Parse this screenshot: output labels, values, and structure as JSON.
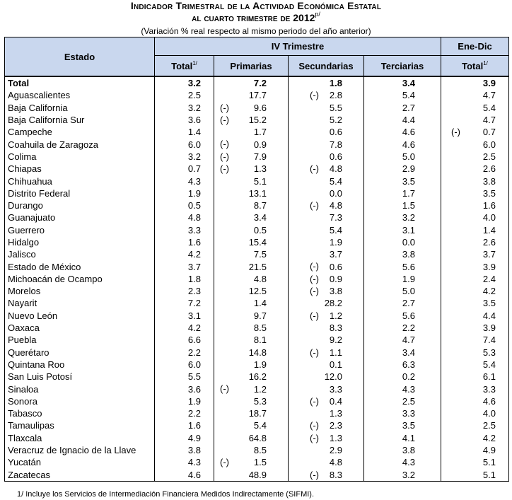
{
  "title": {
    "line1": "Indicador Trimestral de la Actividad Económica Estatal",
    "line2": "al cuarto trimestre de 2012",
    "line2_sup": "p/",
    "subtitle": "(Variación % real respecto al mismo periodo del año anterior)"
  },
  "header": {
    "estado": "Estado",
    "iv_trimestre": "IV Trimestre",
    "ene_dic": "Ene-Dic",
    "total": "Total",
    "total_sup": "1/",
    "primarias": "Primarias",
    "secundarias": "Secundarias",
    "terciarias": "Terciarias"
  },
  "neg_marker": "(-)",
  "rows": [
    {
      "estado": "Total",
      "total": "3.2",
      "primarias": "7.2",
      "secundarias": "1.8",
      "terciarias": "3.4",
      "ene_dic": "3.9"
    },
    {
      "estado": "Aguascalientes",
      "total": "2.5",
      "primarias": "17.7",
      "secundarias": "(-) 2.8",
      "terciarias": "5.4",
      "ene_dic": "4.7"
    },
    {
      "estado": "Baja California",
      "total": "3.2",
      "primarias": "(-) 9.6",
      "secundarias": "5.5",
      "terciarias": "2.7",
      "ene_dic": "5.4"
    },
    {
      "estado": "Baja California Sur",
      "total": "3.6",
      "primarias": "(-) 15.2",
      "secundarias": "5.2",
      "terciarias": "4.4",
      "ene_dic": "4.7"
    },
    {
      "estado": "Campeche",
      "total": "1.4",
      "primarias": "1.7",
      "secundarias": "0.6",
      "terciarias": "4.6",
      "ene_dic": "(-) 0.7"
    },
    {
      "estado": "Coahuila de Zaragoza",
      "total": "6.0",
      "primarias": "(-) 0.9",
      "secundarias": "7.8",
      "terciarias": "4.6",
      "ene_dic": "6.0"
    },
    {
      "estado": "Colima",
      "total": "3.2",
      "primarias": "(-) 7.9",
      "secundarias": "0.6",
      "terciarias": "5.0",
      "ene_dic": "2.5"
    },
    {
      "estado": "Chiapas",
      "total": "0.7",
      "primarias": "(-) 1.3",
      "secundarias": "(-) 4.8",
      "terciarias": "2.9",
      "ene_dic": "2.6"
    },
    {
      "estado": "Chihuahua",
      "total": "4.3",
      "primarias": "5.1",
      "secundarias": "5.4",
      "terciarias": "3.5",
      "ene_dic": "3.8"
    },
    {
      "estado": "Distrito Federal",
      "total": "1.9",
      "primarias": "13.1",
      "secundarias": "0.0",
      "terciarias": "1.7",
      "ene_dic": "3.5"
    },
    {
      "estado": "Durango",
      "total": "0.5",
      "primarias": "8.7",
      "secundarias": "(-) 4.8",
      "terciarias": "1.5",
      "ene_dic": "1.6"
    },
    {
      "estado": "Guanajuato",
      "total": "4.8",
      "primarias": "3.4",
      "secundarias": "7.3",
      "terciarias": "3.2",
      "ene_dic": "4.0"
    },
    {
      "estado": "Guerrero",
      "total": "3.3",
      "primarias": "0.5",
      "secundarias": "5.4",
      "terciarias": "3.1",
      "ene_dic": "1.4"
    },
    {
      "estado": "Hidalgo",
      "total": "1.6",
      "primarias": "15.4",
      "secundarias": "1.9",
      "terciarias": "0.0",
      "ene_dic": "2.6"
    },
    {
      "estado": "Jalisco",
      "total": "4.2",
      "primarias": "7.5",
      "secundarias": "3.7",
      "terciarias": "3.8",
      "ene_dic": "3.7"
    },
    {
      "estado": "Estado de México",
      "total": "3.7",
      "primarias": "21.5",
      "secundarias": "(-) 0.6",
      "terciarias": "5.6",
      "ene_dic": "3.9"
    },
    {
      "estado": "Michoacán de Ocampo",
      "total": "1.8",
      "primarias": "4.8",
      "secundarias": "(-) 0.9",
      "terciarias": "1.9",
      "ene_dic": "2.4"
    },
    {
      "estado": "Morelos",
      "total": "2.3",
      "primarias": "12.5",
      "secundarias": "(-) 3.8",
      "terciarias": "5.0",
      "ene_dic": "4.2"
    },
    {
      "estado": "Nayarit",
      "total": "7.2",
      "primarias": "1.4",
      "secundarias": "28.2",
      "terciarias": "2.7",
      "ene_dic": "3.5"
    },
    {
      "estado": "Nuevo León",
      "total": "3.1",
      "primarias": "9.7",
      "secundarias": "(-) 1.2",
      "terciarias": "5.6",
      "ene_dic": "4.4"
    },
    {
      "estado": "Oaxaca",
      "total": "4.2",
      "primarias": "8.5",
      "secundarias": "8.3",
      "terciarias": "2.2",
      "ene_dic": "3.9"
    },
    {
      "estado": "Puebla",
      "total": "6.6",
      "primarias": "8.1",
      "secundarias": "9.2",
      "terciarias": "4.7",
      "ene_dic": "7.4"
    },
    {
      "estado": "Querétaro",
      "total": "2.2",
      "primarias": "14.8",
      "secundarias": "(-) 1.1",
      "terciarias": "3.4",
      "ene_dic": "5.3"
    },
    {
      "estado": "Quintana Roo",
      "total": "6.0",
      "primarias": "1.9",
      "secundarias": "0.1",
      "terciarias": "6.3",
      "ene_dic": "5.4"
    },
    {
      "estado": "San Luis Potosí",
      "total": "5.5",
      "primarias": "16.2",
      "secundarias": "12.0",
      "terciarias": "0.2",
      "ene_dic": "6.1"
    },
    {
      "estado": "Sinaloa",
      "total": "3.6",
      "primarias": "(-) 1.2",
      "secundarias": "3.3",
      "terciarias": "4.3",
      "ene_dic": "3.3"
    },
    {
      "estado": "Sonora",
      "total": "1.9",
      "primarias": "5.3",
      "secundarias": "(-) 0.4",
      "terciarias": "2.5",
      "ene_dic": "4.6"
    },
    {
      "estado": "Tabasco",
      "total": "2.2",
      "primarias": "18.7",
      "secundarias": "1.3",
      "terciarias": "3.3",
      "ene_dic": "4.0"
    },
    {
      "estado": "Tamaulipas",
      "total": "1.6",
      "primarias": "5.4",
      "secundarias": "(-) 2.3",
      "terciarias": "3.5",
      "ene_dic": "2.5"
    },
    {
      "estado": "Tlaxcala",
      "total": "4.9",
      "primarias": "64.8",
      "secundarias": "(-) 1.3",
      "terciarias": "4.1",
      "ene_dic": "4.2"
    },
    {
      "estado": "Veracruz de Ignacio de la Llave",
      "total": "3.8",
      "primarias": "8.5",
      "secundarias": "2.9",
      "terciarias": "3.8",
      "ene_dic": "4.9"
    },
    {
      "estado": "Yucatán",
      "total": "4.3",
      "primarias": "(-) 1.5",
      "secundarias": "4.8",
      "terciarias": "4.3",
      "ene_dic": "5.1"
    },
    {
      "estado": "Zacatecas",
      "total": "4.6",
      "primarias": "48.9",
      "secundarias": "(-) 8.3",
      "terciarias": "3.2",
      "ene_dic": "5.1"
    }
  ],
  "footnote": "1/ Incluye los Servicios de Intermediación Financiera Medidos Indirectamente (SIFMI)."
}
